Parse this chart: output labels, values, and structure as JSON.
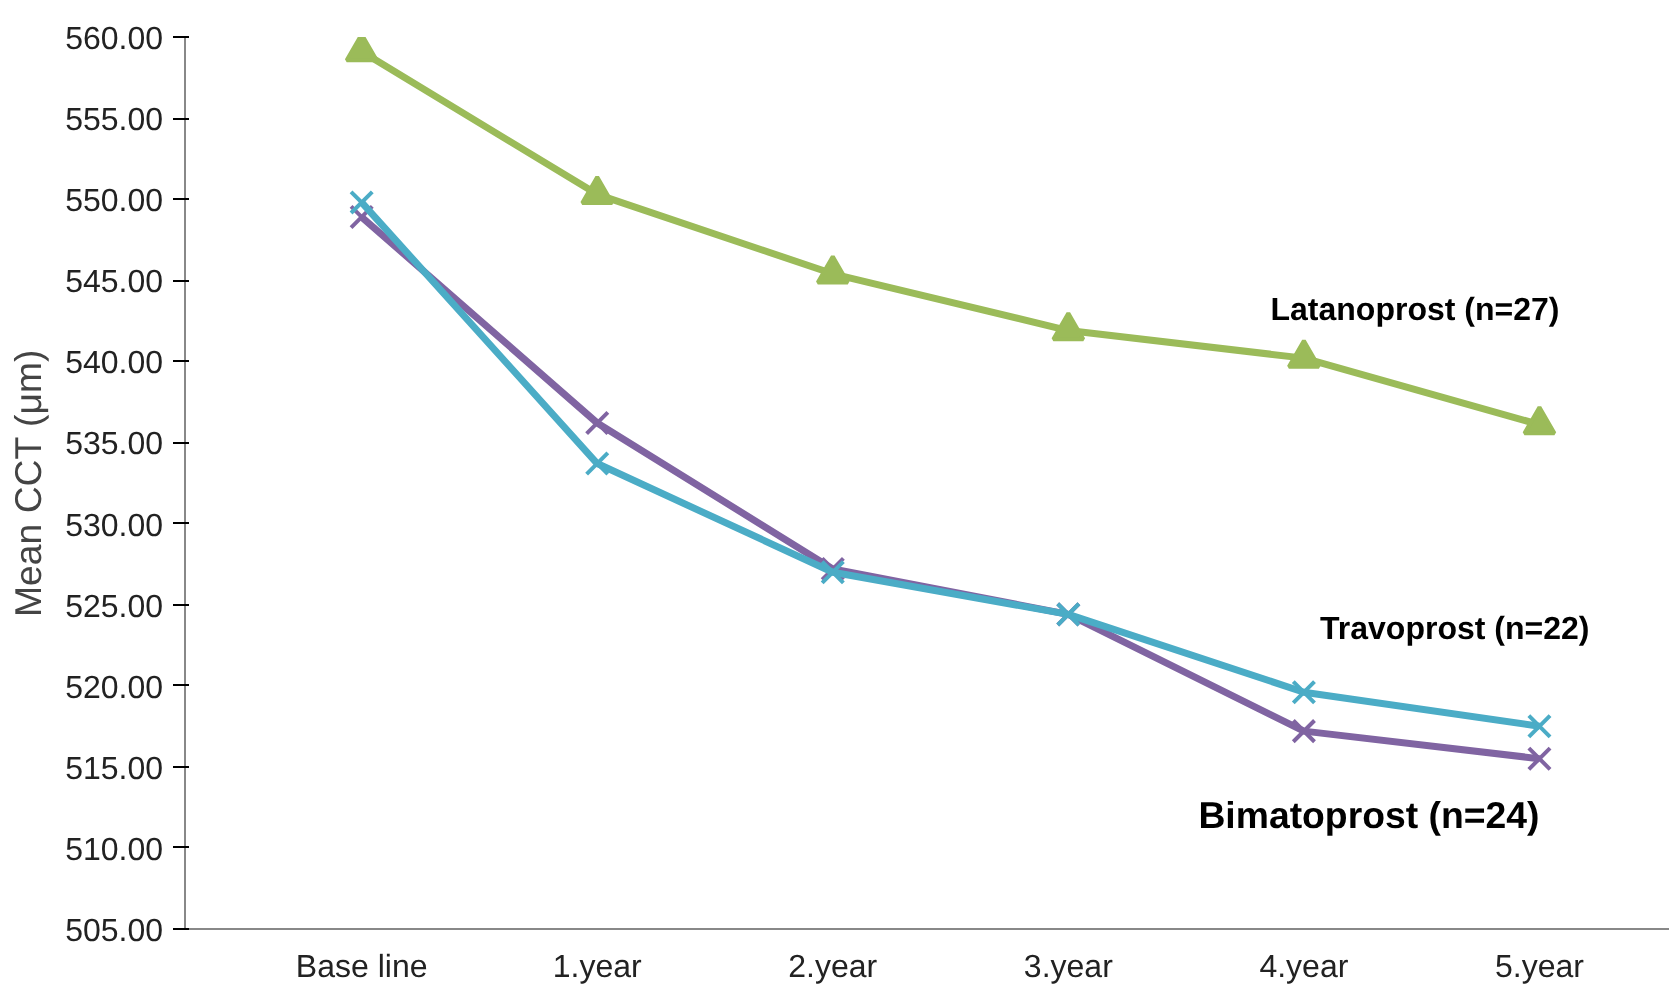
{
  "chart_data": {
    "type": "line",
    "ylabel": "Mean CCT (μm)",
    "categories": [
      "Base line",
      "1.year",
      "2.year",
      "3.year",
      "4.year",
      "5.year"
    ],
    "series": [
      {
        "name": "Latanoprost (n=27)",
        "color": "#9bbb59",
        "marker": "triangle",
        "values": [
          559.1,
          550.3,
          545.4,
          541.9,
          540.2,
          536.1
        ]
      },
      {
        "name": "Travoprost (n=22)",
        "color": "#4bacc6",
        "marker": "cross",
        "values": [
          549.8,
          533.7,
          527.0,
          524.4,
          519.6,
          517.5
        ]
      },
      {
        "name": "Bimatoprost (n=24)",
        "color": "#8064a2",
        "marker": "cross",
        "values": [
          548.9,
          536.2,
          527.2,
          524.4,
          517.2,
          515.5
        ]
      }
    ],
    "ylim": [
      505,
      560
    ],
    "yticks": [
      {
        "value": 505,
        "label": "505.00"
      },
      {
        "value": 510,
        "label": "510.00"
      },
      {
        "value": 515,
        "label": "515.00"
      },
      {
        "value": 520,
        "label": "520.00"
      },
      {
        "value": 525,
        "label": "525.00"
      },
      {
        "value": 530,
        "label": "530.00"
      },
      {
        "value": 535,
        "label": "535.00"
      },
      {
        "value": 540,
        "label": "540.00"
      },
      {
        "value": 545,
        "label": "545.00"
      },
      {
        "value": 550,
        "label": "550.00"
      },
      {
        "value": 555,
        "label": "555.00"
      },
      {
        "value": 560,
        "label": "560.00"
      }
    ],
    "grid": false
  }
}
